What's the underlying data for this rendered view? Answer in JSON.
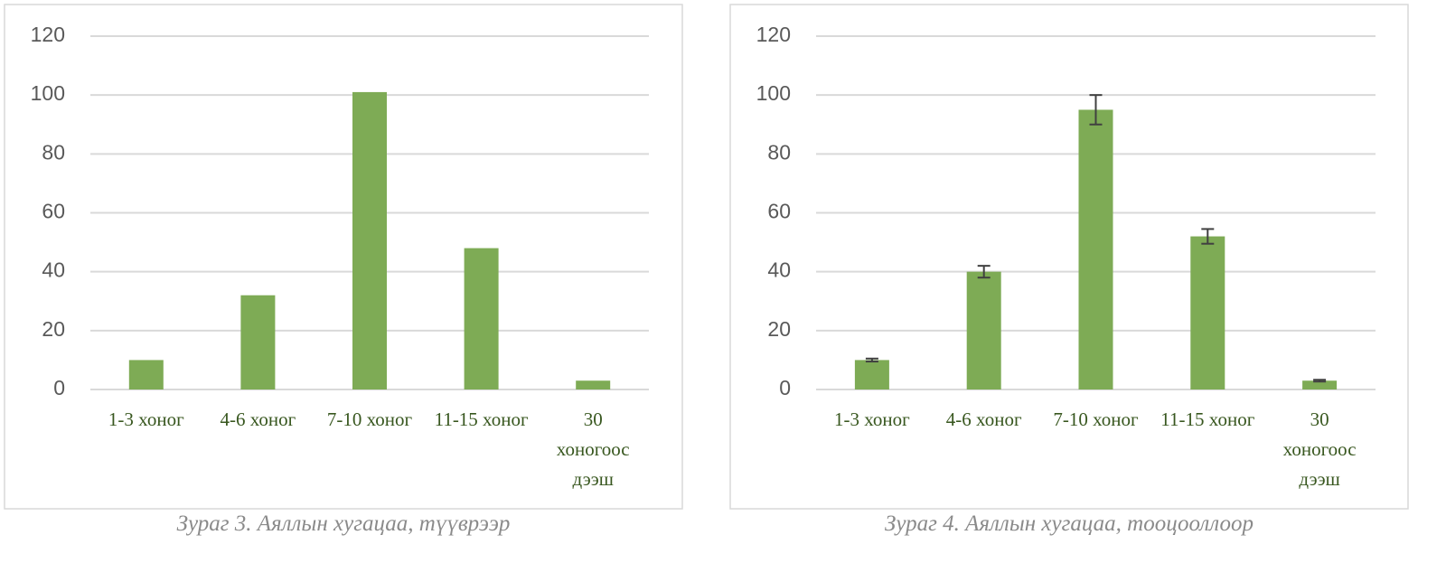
{
  "chart_data": [
    {
      "type": "bar",
      "caption": "Зураг 3. Аяллын хугацаа, түүврээр",
      "categories": [
        "1-3 хоног",
        "4-6 хоног",
        "7-10 хоног",
        "11-15 хоног",
        "30 хоногоос дээш"
      ],
      "values": [
        10,
        32,
        101,
        48,
        3
      ],
      "color": "#7eab55",
      "ylim": [
        0,
        120
      ],
      "yticks": [
        0,
        20,
        40,
        60,
        80,
        100,
        120
      ],
      "grid": true
    },
    {
      "type": "bar",
      "caption": "Зураг 4. Аяллын хугацаа, тооцооллоор",
      "categories": [
        "1-3 хоног",
        "4-6 хоног",
        "7-10 хоног",
        "11-15 хоног",
        "30 хоногоос дээш"
      ],
      "values": [
        10,
        40,
        95,
        52,
        3
      ],
      "errors": [
        0.5,
        2,
        5,
        2.5,
        0.3
      ],
      "color": "#7eab55",
      "ylim": [
        0,
        120
      ],
      "yticks": [
        0,
        20,
        40,
        60,
        80,
        100,
        120
      ],
      "grid": true
    }
  ]
}
